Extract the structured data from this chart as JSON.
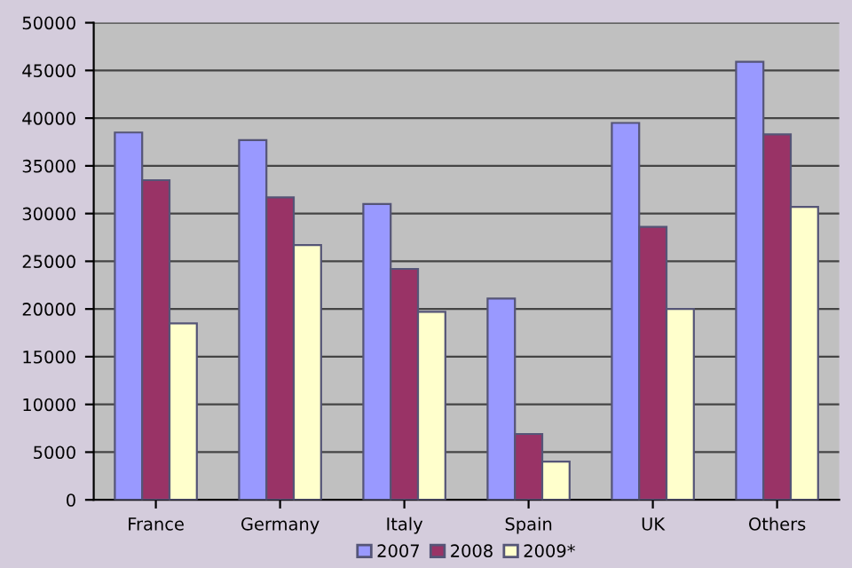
{
  "chart_data": {
    "type": "bar",
    "categories": [
      "France",
      "Germany",
      "Italy",
      "Spain",
      "UK",
      "Others"
    ],
    "series": [
      {
        "name": "2007",
        "color": "#9999ff",
        "values": [
          38500,
          37700,
          31000,
          21100,
          39500,
          45900
        ]
      },
      {
        "name": "2008",
        "color": "#993366",
        "values": [
          33500,
          31700,
          24200,
          6900,
          28600,
          38300
        ]
      },
      {
        "name": "2009*",
        "color": "#ffffcc",
        "values": [
          18500,
          26700,
          19700,
          4000,
          20000,
          30700
        ]
      }
    ],
    "ylim": [
      0,
      50000
    ],
    "yticks": [
      0,
      5000,
      10000,
      15000,
      20000,
      25000,
      30000,
      35000,
      40000,
      45000,
      50000
    ],
    "grid": "y",
    "legend": "bottom"
  }
}
